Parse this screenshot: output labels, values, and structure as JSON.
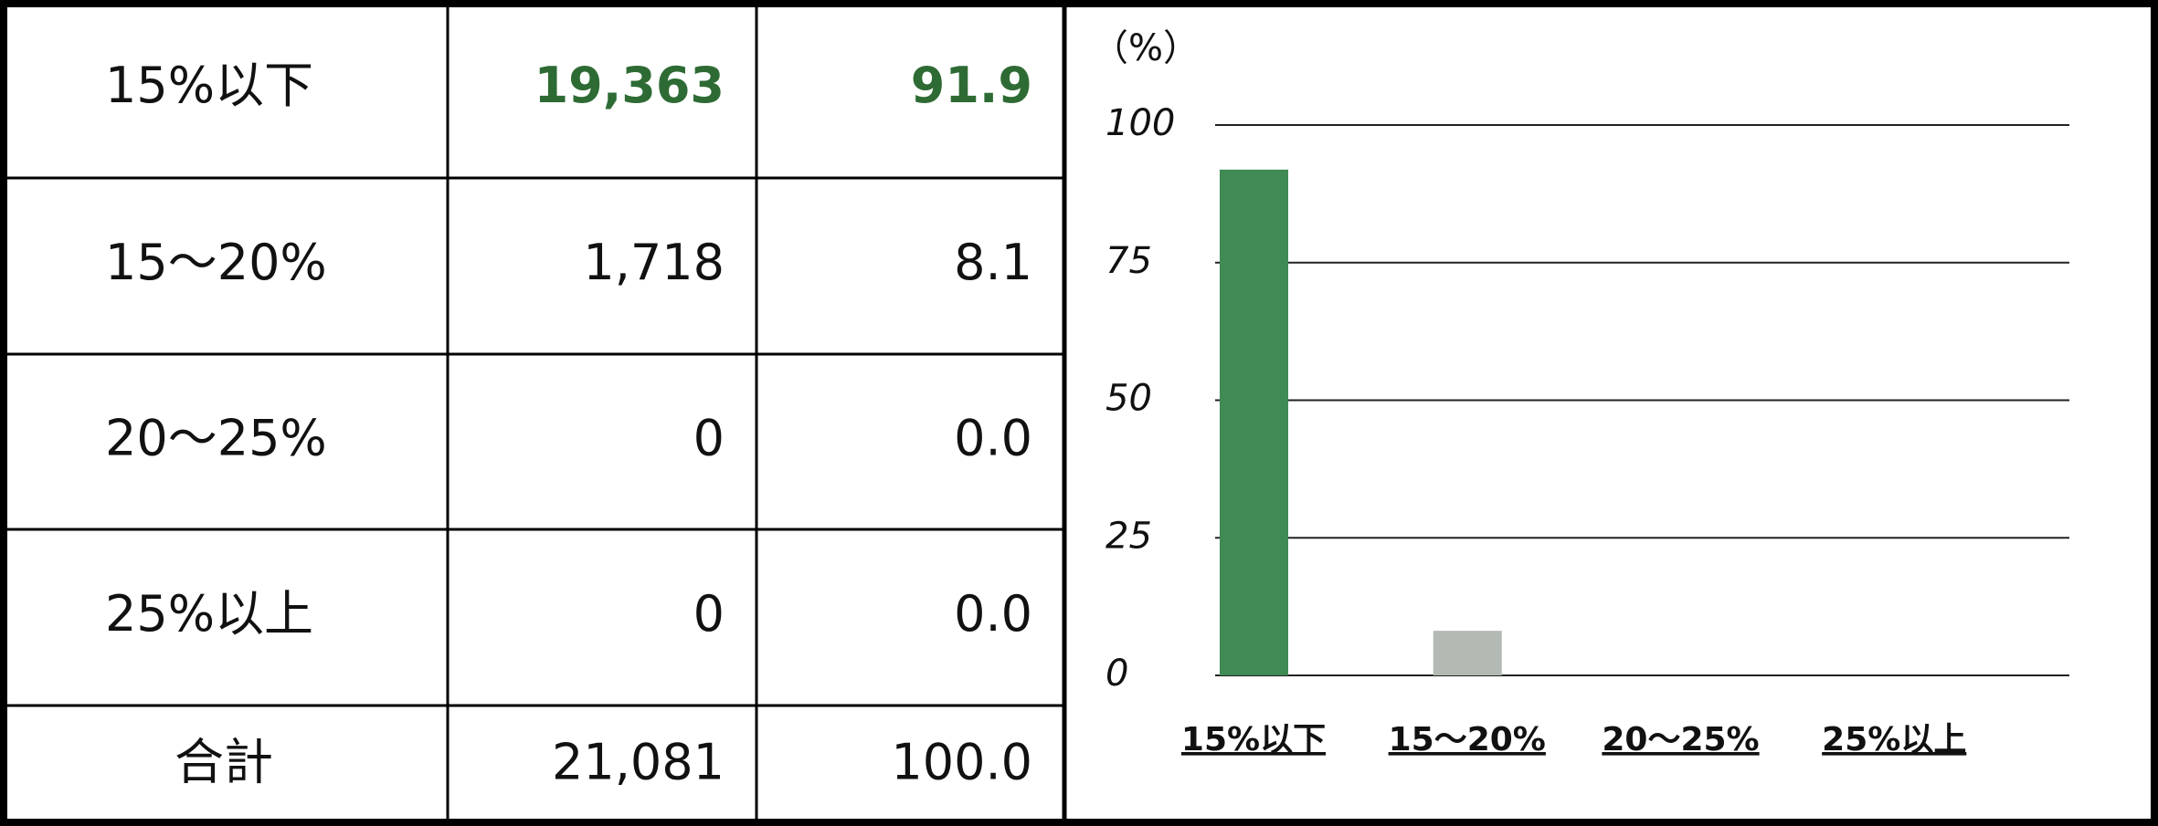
{
  "table": {
    "rows": [
      [
        "15%以下",
        "19,363",
        "91.9"
      ],
      [
        "15～20%",
        "1,718",
        "8.1"
      ],
      [
        "20～25%",
        "0",
        "0.0"
      ],
      [
        "25%以上",
        "0",
        "0.0"
      ],
      [
        "合計",
        "21,081",
        "100.0"
      ]
    ],
    "highlight_row": 0,
    "highlight_color": "#2e6b34"
  },
  "chart_data": {
    "type": "bar",
    "y_label": "（%）",
    "categories": [
      "15%以下",
      "15～20%",
      "20～25%",
      "25%以上"
    ],
    "values": [
      91.9,
      8.1,
      0.0,
      0.0
    ],
    "colors": [
      "#3f8a55",
      "#b3bab3",
      "#b3bab3",
      "#b3bab3"
    ],
    "ylim": [
      0,
      100
    ],
    "yticks": [
      0,
      25,
      50,
      75,
      100
    ],
    "grid": true
  }
}
